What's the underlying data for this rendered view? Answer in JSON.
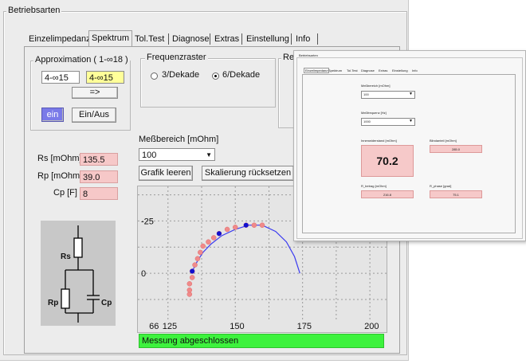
{
  "main": {
    "frame_title": "Betriebsarten",
    "tabs": [
      {
        "label": "Einzelimpedanz"
      },
      {
        "label": "Spektrum"
      },
      {
        "label": "Tol.Test"
      },
      {
        "label": "Diagnose"
      },
      {
        "label": "Extras"
      },
      {
        "label": "Einstellung"
      },
      {
        "label": "Info"
      }
    ],
    "active_tab": "Spektrum",
    "approx": {
      "title": "Approximation ( 1-∞18 )",
      "field_left": "4-∞15",
      "field_right": "4-∞15",
      "arrow_button": "=>",
      "ein_label": "ein",
      "einaus_button": "Ein/Aus"
    },
    "params": {
      "rs_label": "Rs [mOhm]",
      "rs_value": "135.5",
      "rp_label": "Rp [mOhm]",
      "rp_value": "39.0",
      "cp_label": "Cp [F]",
      "cp_value": "8"
    },
    "circuit": {
      "rs": "Rs",
      "rp": "Rp",
      "cp": "Cp"
    },
    "freq": {
      "title": "Frequenzraster",
      "opt1": "3/Dekade",
      "opt2": "6/Dekade",
      "selected": "6/Dekade"
    },
    "hidden_group_title": "Re",
    "messbereich": {
      "label": "Meßbereich [mOhm]",
      "value": "100",
      "clear_button": "Grafik leeren",
      "reset_button": "Skalierung rücksetzen"
    },
    "status": "Messung abgeschlossen",
    "colors": {
      "status_green": "#3df23d",
      "highlight_yellow": "#ffff99",
      "value_pink": "#f6c8c8",
      "ein_blue": "#7a7ae8"
    }
  },
  "chart_data": {
    "type": "scatter",
    "x_ticks": [
      "66",
      "125",
      "150",
      "175",
      "200"
    ],
    "y_ticks": [
      "-25",
      "0"
    ],
    "xlim": [
      115,
      205
    ],
    "ylim": [
      -40,
      22
    ],
    "measured_points": [
      [
        133,
        10
      ],
      [
        133,
        8
      ],
      [
        133,
        5
      ],
      [
        134,
        2
      ],
      [
        134,
        -1
      ],
      [
        135,
        -4
      ],
      [
        136,
        -7
      ],
      [
        137,
        -10
      ],
      [
        138,
        -13
      ],
      [
        140,
        -15
      ],
      [
        142,
        -17
      ],
      [
        144,
        -19
      ],
      [
        147,
        -21
      ],
      [
        150,
        -22
      ],
      [
        154,
        -23
      ],
      [
        157,
        -23
      ],
      [
        160,
        -23
      ]
    ],
    "blue_points": [
      [
        134,
        -1
      ],
      [
        144,
        -19
      ],
      [
        154,
        -23
      ]
    ],
    "fit_curve_x": [
      134,
      136,
      138,
      141,
      145,
      150,
      155,
      160,
      165,
      169,
      172,
      174
    ],
    "fit_curve_y": [
      -1,
      -6,
      -10,
      -14,
      -18,
      -21,
      -23,
      -23,
      -20,
      -15,
      -8,
      0
    ]
  },
  "popup": {
    "frame_title": "Betriebsarten",
    "tabs": [
      "Einzelimpedanz",
      "Spektrum",
      "Tol.Test",
      "Diagnose",
      "Extras",
      "Einstellung",
      "Info"
    ],
    "messbereich_label": "Meßbereich [mOhm]",
    "messbereich_value": "100",
    "messfrequenz_label": "Meßfrequenz [Hz]",
    "messfrequenz_value": "1000",
    "innen_label": "Innenwiderstand [mOhm]",
    "innen_value": "70.2",
    "blind_label": "Blindanteil [mOhm]",
    "blind_value": "285.0",
    "betrag_label": "R_betrag [mOhm]",
    "betrag_value": "216.8",
    "phase_label": "R_phase [grad]",
    "phase_value": "75.1"
  }
}
